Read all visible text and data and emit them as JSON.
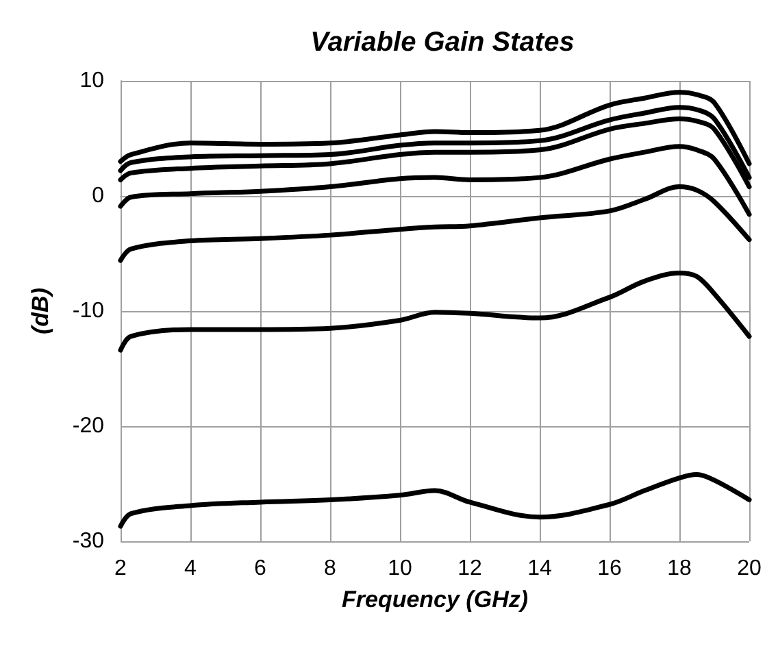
{
  "chart_data": {
    "type": "line",
    "title": "Variable Gain States",
    "xlabel": "Frequency (GHz)",
    "ylabel": "(dB)",
    "xlim": [
      2,
      20
    ],
    "xticks": [
      2,
      4,
      6,
      8,
      10,
      12,
      14,
      16,
      18,
      20
    ],
    "ylim": [
      -30,
      10
    ],
    "yticks": [
      -30,
      -20,
      -10,
      0,
      10
    ],
    "grid": true,
    "line_style": "solid",
    "marker": "none",
    "x": [
      2,
      2.3,
      4,
      6,
      8,
      10,
      11,
      12,
      14,
      16,
      17,
      18,
      18.5,
      19,
      20
    ],
    "series": [
      {
        "color": "#000000",
        "values": [
          3.0,
          3.6,
          4.6,
          4.5,
          4.6,
          5.3,
          5.6,
          5.5,
          5.7,
          7.9,
          8.5,
          9.0,
          8.8,
          8.1,
          2.8
        ]
      },
      {
        "color": "#000000",
        "values": [
          2.2,
          2.9,
          3.4,
          3.5,
          3.6,
          4.4,
          4.6,
          4.6,
          4.8,
          6.6,
          7.2,
          7.7,
          7.5,
          6.7,
          1.6
        ]
      },
      {
        "color": "#000000",
        "values": [
          1.4,
          2.0,
          2.4,
          2.6,
          2.8,
          3.6,
          3.8,
          3.8,
          4.0,
          5.8,
          6.3,
          6.7,
          6.5,
          5.8,
          0.8
        ]
      },
      {
        "color": "#000000",
        "values": [
          -0.9,
          -0.1,
          0.2,
          0.4,
          0.8,
          1.5,
          1.6,
          1.4,
          1.6,
          3.2,
          3.8,
          4.3,
          4.0,
          3.2,
          -1.6
        ]
      },
      {
        "color": "#000000",
        "values": [
          -5.6,
          -4.6,
          -3.9,
          -3.7,
          -3.4,
          -2.9,
          -2.7,
          -2.6,
          -1.9,
          -1.3,
          -0.3,
          0.8,
          0.5,
          -0.5,
          -3.8
        ]
      },
      {
        "color": "#000000",
        "values": [
          -13.4,
          -12.2,
          -11.6,
          -11.6,
          -11.5,
          -10.8,
          -10.1,
          -10.2,
          -10.6,
          -8.8,
          -7.4,
          -6.7,
          -7.0,
          -8.5,
          -12.2
        ]
      },
      {
        "color": "#000000",
        "values": [
          -28.7,
          -27.6,
          -26.9,
          -26.6,
          -26.4,
          -26.0,
          -25.6,
          -26.6,
          -27.9,
          -26.8,
          -25.6,
          -24.5,
          -24.2,
          -24.7,
          -26.4
        ]
      }
    ]
  }
}
